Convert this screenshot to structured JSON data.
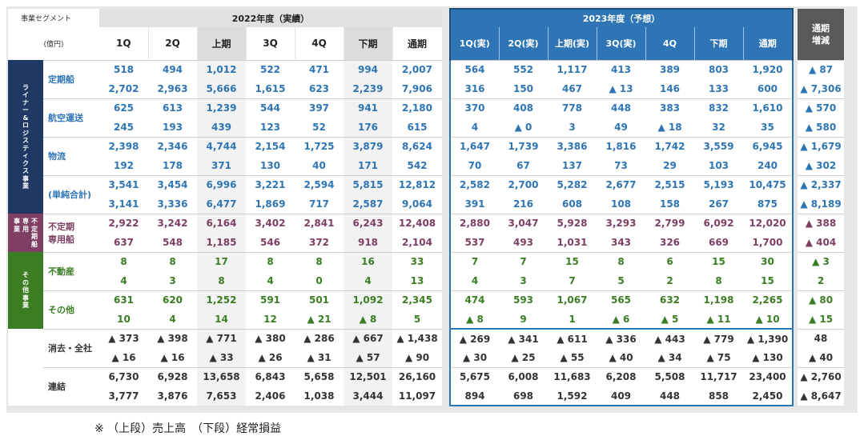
{
  "header": {
    "segment_label": "事業セグメント",
    "unit_label": "(億円)",
    "fy2022_title": "2022年度（実績）",
    "fy2023_title": "2023年度（予想）",
    "diff_title_line1": "通期",
    "diff_title_line2": "増減",
    "columns_2022": [
      "1Q",
      "2Q",
      "上期",
      "3Q",
      "4Q",
      "下期",
      "通期"
    ],
    "columns_2023": [
      "1Q(実)",
      "2Q(実)",
      "上期(実)",
      "3Q(実)",
      "4Q",
      "下期",
      "通期"
    ]
  },
  "groups": {
    "liner": [
      "ラ",
      "イ",
      "ナ",
      "ー",
      "&",
      "ロ",
      "ジ",
      "ス",
      "テ",
      "ィ",
      "ク",
      "ス",
      "事",
      "業"
    ],
    "fixed_col1": [
      "事",
      "業"
    ],
    "fixed_col2": [
      "専",
      "用"
    ],
    "fixed_col3": [
      "不",
      "定",
      "期",
      "船"
    ],
    "other": [
      "そ",
      "の",
      "他",
      "事",
      "業"
    ]
  },
  "rows": [
    {
      "label_lines": [
        "定期船"
      ],
      "upper": [
        "518",
        "494",
        "1,012",
        "522",
        "471",
        "994",
        "2,007",
        "564",
        "552",
        "1,117",
        "413",
        "389",
        "803",
        "1,920",
        "▲ 87"
      ],
      "lower": [
        "2,702",
        "2,963",
        "5,666",
        "1,615",
        "623",
        "2,239",
        "7,906",
        "316",
        "150",
        "467",
        "▲ 13",
        "146",
        "133",
        "600",
        "▲ 7,306"
      ]
    },
    {
      "label_lines": [
        "航空運送"
      ],
      "upper": [
        "625",
        "613",
        "1,239",
        "544",
        "397",
        "941",
        "2,180",
        "370",
        "408",
        "778",
        "448",
        "383",
        "832",
        "1,610",
        "▲ 570"
      ],
      "lower": [
        "245",
        "193",
        "439",
        "123",
        "52",
        "176",
        "615",
        "4",
        "▲ 0",
        "3",
        "49",
        "▲ 18",
        "32",
        "35",
        "▲ 580"
      ]
    },
    {
      "label_lines": [
        "物流"
      ],
      "upper": [
        "2,398",
        "2,346",
        "4,744",
        "2,154",
        "1,725",
        "3,879",
        "8,624",
        "1,647",
        "1,739",
        "3,386",
        "1,816",
        "1,742",
        "3,559",
        "6,945",
        "▲ 1,679"
      ],
      "lower": [
        "192",
        "178",
        "371",
        "130",
        "40",
        "171",
        "542",
        "70",
        "67",
        "137",
        "73",
        "29",
        "103",
        "240",
        "▲ 302"
      ]
    },
    {
      "label_lines": [
        "(単純合計)"
      ],
      "upper": [
        "3,541",
        "3,454",
        "6,996",
        "3,221",
        "2,594",
        "5,815",
        "12,812",
        "2,582",
        "2,700",
        "5,282",
        "2,677",
        "2,515",
        "5,193",
        "10,475",
        "▲ 2,337"
      ],
      "lower": [
        "3,141",
        "3,336",
        "6,477",
        "1,869",
        "717",
        "2,587",
        "9,064",
        "391",
        "216",
        "608",
        "108",
        "158",
        "267",
        "875",
        "▲ 8,189"
      ]
    },
    {
      "label_lines": [
        "不定期",
        "専用船"
      ],
      "upper": [
        "2,922",
        "3,242",
        "6,164",
        "3,402",
        "2,841",
        "6,243",
        "12,408",
        "2,880",
        "3,047",
        "5,928",
        "3,293",
        "2,799",
        "6,092",
        "12,020",
        "▲ 388"
      ],
      "lower": [
        "637",
        "548",
        "1,185",
        "546",
        "372",
        "918",
        "2,104",
        "537",
        "493",
        "1,031",
        "343",
        "326",
        "669",
        "1,700",
        "▲ 404"
      ]
    },
    {
      "label_lines": [
        "不動産"
      ],
      "upper": [
        "8",
        "8",
        "17",
        "8",
        "8",
        "16",
        "33",
        "7",
        "7",
        "15",
        "8",
        "6",
        "15",
        "30",
        "▲ 3"
      ],
      "lower": [
        "4",
        "3",
        "8",
        "4",
        "0",
        "4",
        "13",
        "4",
        "3",
        "7",
        "5",
        "2",
        "8",
        "15",
        "2"
      ]
    },
    {
      "label_lines": [
        "その他"
      ],
      "upper": [
        "631",
        "620",
        "1,252",
        "591",
        "501",
        "1,092",
        "2,345",
        "474",
        "593",
        "1,067",
        "565",
        "632",
        "1,198",
        "2,265",
        "▲ 80"
      ],
      "lower": [
        "10",
        "4",
        "14",
        "12",
        "▲ 21",
        "▲ 8",
        "5",
        "▲ 8",
        "9",
        "1",
        "▲ 6",
        "▲ 5",
        "▲ 11",
        "▲ 10",
        "▲ 15"
      ]
    },
    {
      "label_lines": [
        "消去・全社"
      ],
      "upper": [
        "▲ 373",
        "▲ 398",
        "▲ 771",
        "▲ 380",
        "▲ 286",
        "▲ 667",
        "▲ 1,438",
        "▲ 269",
        "▲ 341",
        "▲ 611",
        "▲ 336",
        "▲ 443",
        "▲ 779",
        "▲ 1,390",
        "48"
      ],
      "lower": [
        "▲ 16",
        "▲ 16",
        "▲ 33",
        "▲ 26",
        "▲ 31",
        "▲ 57",
        "▲ 90",
        "▲ 30",
        "▲ 25",
        "▲ 55",
        "▲ 40",
        "▲ 34",
        "▲ 75",
        "▲ 130",
        "▲ 40"
      ]
    },
    {
      "label_lines": [
        "連結"
      ],
      "upper": [
        "6,730",
        "6,928",
        "13,658",
        "6,843",
        "5,658",
        "12,501",
        "26,160",
        "5,675",
        "6,008",
        "11,683",
        "6,208",
        "5,508",
        "11,717",
        "23,400",
        "▲ 2,760"
      ],
      "lower": [
        "3,777",
        "3,876",
        "7,653",
        "2,406",
        "1,038",
        "3,444",
        "11,097",
        "894",
        "698",
        "1,592",
        "409",
        "448",
        "858",
        "2,450",
        "▲ 8,647"
      ]
    }
  ],
  "colors": {
    "liner": "#2e75b6",
    "fixed": "#7f3f62",
    "other": "#3b7d23",
    "corporate": "#333333",
    "fy2023_header": "#2e75b6",
    "diff_header": "#595959"
  },
  "footnote": "※ （上段）売上高　（下段）経常損益"
}
